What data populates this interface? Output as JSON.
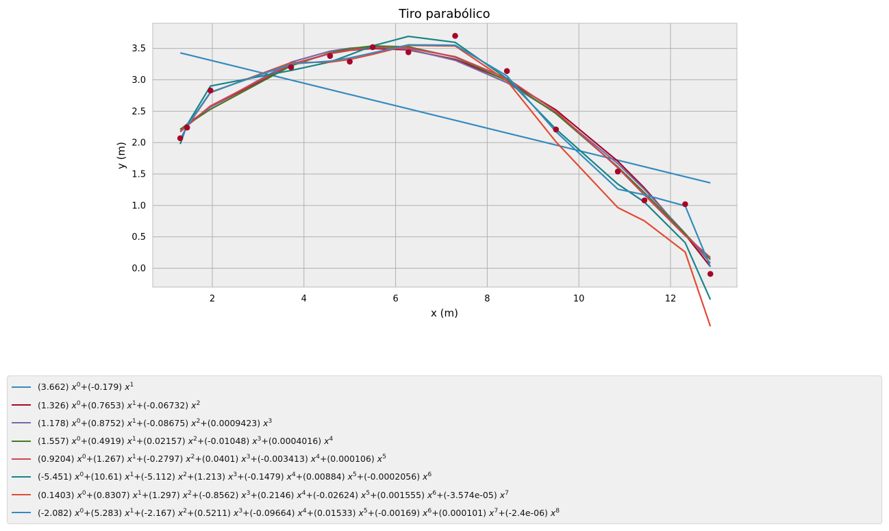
{
  "chart_data": {
    "type": "line",
    "title": "Tiro parabólico",
    "xlabel": "x (m)",
    "ylabel": "y (m)",
    "xlim": [
      0.7,
      13.45
    ],
    "ylim": [
      -0.3,
      3.9
    ],
    "xticks": [
      2,
      4,
      6,
      8,
      10,
      12
    ],
    "yticks": [
      0.0,
      0.5,
      1.0,
      1.5,
      2.0,
      2.5,
      3.0,
      3.5
    ],
    "grid": true,
    "legend_position": "bottom (outside plot)",
    "scatter": {
      "color": "#A60628",
      "x": [
        1.3,
        1.45,
        1.96,
        3.72,
        4.57,
        5.0,
        5.5,
        6.28,
        7.3,
        8.43,
        9.5,
        10.85,
        11.43,
        12.32,
        12.87
      ],
      "y": [
        2.07,
        2.24,
        2.83,
        3.2,
        3.38,
        3.29,
        3.52,
        3.44,
        3.7,
        3.14,
        2.21,
        1.54,
        1.08,
        1.02,
        -0.09
      ]
    },
    "series": [
      {
        "color": "#348ABD",
        "coef": [
          3.662,
          -0.179
        ],
        "label": "(3.662) x^0+(-0.179) x^1"
      },
      {
        "color": "#A60628",
        "coef": [
          1.326,
          0.7653,
          -0.06732
        ],
        "label": "(1.326) x^0+(0.7653) x^1+(-0.06732) x^2"
      },
      {
        "color": "#7A68A6",
        "coef": [
          1.178,
          0.8752,
          -0.08675,
          0.0009423
        ],
        "label": "(1.178) x^0+(0.8752) x^1+(-0.08675) x^2+(0.0009423) x^3"
      },
      {
        "color": "#467821",
        "coef": [
          1.557,
          0.4919,
          0.02157,
          -0.01048,
          0.0004016
        ],
        "label": "(1.557) x^0+(0.4919) x^1+(0.02157) x^2+(-0.01048) x^3+(0.0004016) x^4"
      },
      {
        "color": "#CF4457",
        "coef": [
          0.9204,
          1.267,
          -0.2797,
          0.0401,
          -0.003413,
          0.000106
        ],
        "label": "(0.9204) x^0+(1.267) x^1+(-0.2797) x^2+(0.0401) x^3+(-0.003413) x^4+(0.000106) x^5"
      },
      {
        "color": "#188487",
        "coef": [
          -5.451,
          10.61,
          -5.112,
          1.213,
          -0.1479,
          0.00884,
          -0.0002056
        ],
        "label": "(-5.451) x^0+(10.61) x^1+(-5.112) x^2+(1.213) x^3+(-0.1479) x^4+(0.00884) x^5+(-0.0002056) x^6"
      },
      {
        "color": "#E24A33",
        "coef": [
          0.1403,
          0.8307,
          1.297,
          -0.8562,
          0.2146,
          -0.02624,
          0.001555,
          -3.574e-05
        ],
        "label": "(0.1403) x^0+(0.8307) x^1+(1.297) x^2+(-0.8562) x^3+(0.2146) x^4+(-0.02624) x^5+(0.001555) x^6+(-3.574e-05) x^7"
      },
      {
        "color": "#348ABD",
        "coef": [
          -2.082,
          5.283,
          -2.167,
          0.5211,
          -0.09664,
          0.01533,
          -0.00169,
          0.000101,
          -2.4e-06
        ],
        "label": "(-2.082) x^0+(5.283) x^1+(-2.167) x^2+(0.5211) x^3+(-0.09664) x^4+(0.01533) x^5+(-0.00169) x^6+(0.000101) x^7+(-2.4e-06) x^8"
      }
    ]
  }
}
